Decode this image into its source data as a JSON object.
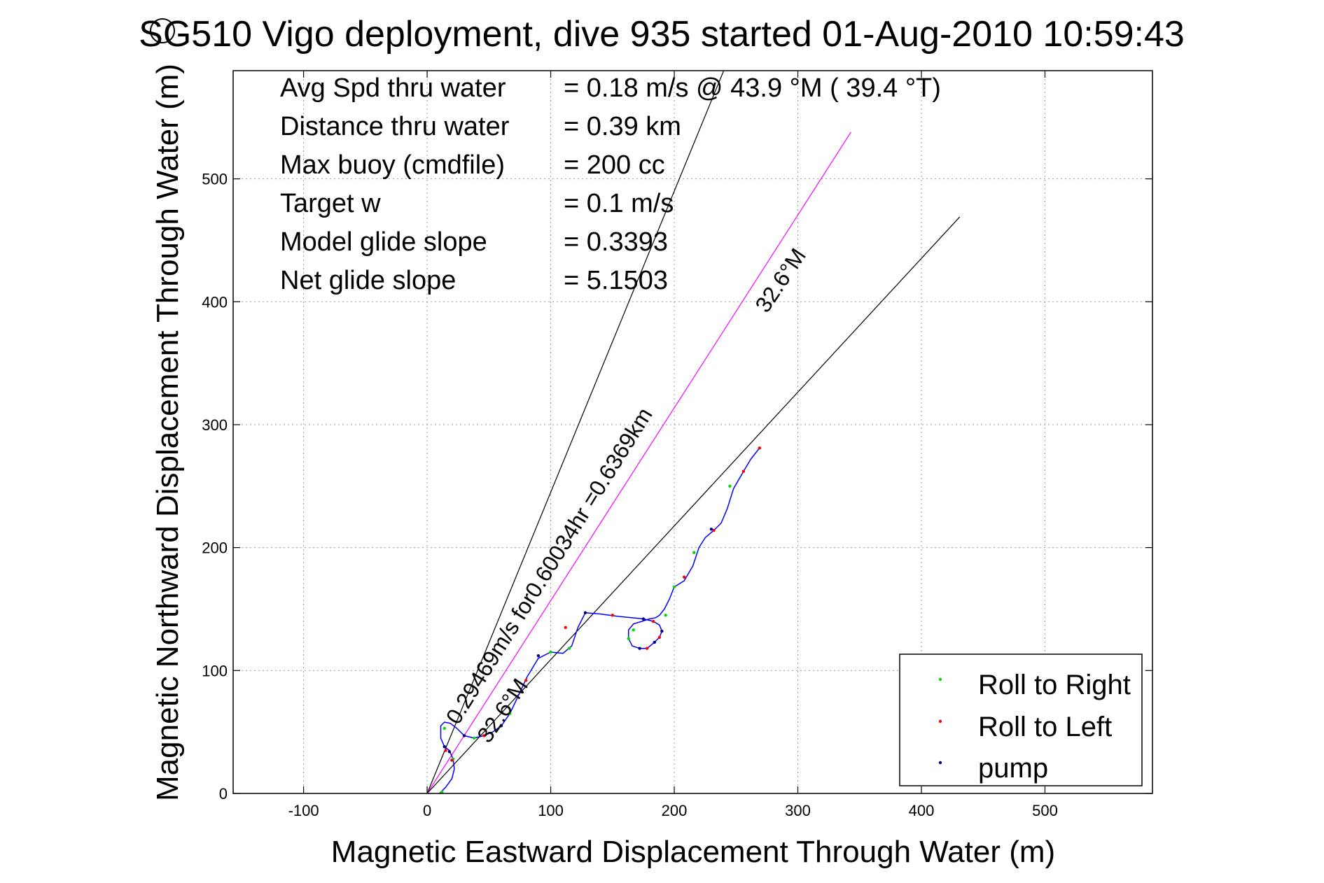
{
  "chart_data": {
    "type": "scatter",
    "title": "SG510 Vigo deployment, dive 935 started 01-Aug-2010 10:59:43",
    "xlabel": "Magnetic Eastward Displacement Through Water (m)",
    "ylabel": "Magnetic Northward Displacement Through Water (m)",
    "xlim": [
      -157,
      587
    ],
    "ylim": [
      0,
      588
    ],
    "xticks": [
      -100,
      0,
      100,
      200,
      300,
      400,
      500
    ],
    "yticks": [
      0,
      100,
      200,
      300,
      400,
      500
    ],
    "grid": true,
    "legend_position": "bottom-right",
    "info_lines": [
      {
        "label": "Avg Spd thru water",
        "value": "=  0.18 m/s @  43.9 °M ( 39.4 °T)"
      },
      {
        "label": "Distance thru water",
        "value": "=  0.39 km"
      },
      {
        "label": "Max buoy (cmdfile)",
        "value": "= 200 cc"
      },
      {
        "label": "Target w",
        "value": "= 0.1 m/s"
      },
      {
        "label": "Model glide slope",
        "value": "= 0.3393"
      },
      {
        "label": "Net glide slope",
        "value": "= 5.1503"
      }
    ],
    "annotations": [
      {
        "text": "0.29469m/s for0.60034hr =0.6369km",
        "x": 25,
        "y": 55,
        "angle_deg": 58
      },
      {
        "text": "32.6°M",
        "x": 275,
        "y": 390,
        "angle_deg": 56
      },
      {
        "text": "32.6°M",
        "x": 50,
        "y": 40,
        "angle_deg": 56
      }
    ],
    "reference_lines": [
      {
        "name": "",
        "color": "#000000",
        "x": [
          0,
          240
        ],
        "y": [
          0,
          588
        ]
      },
      {
        "name": "",
        "color": "#ff00ff",
        "x": [
          0,
          343
        ],
        "y": [
          0,
          538
        ]
      },
      {
        "name": "",
        "color": "#000000",
        "x": [
          0,
          431
        ],
        "y": [
          0,
          469
        ]
      }
    ],
    "track": {
      "name": "",
      "color": "#0000ff",
      "x": [
        10,
        15,
        20,
        22,
        21,
        18,
        14,
        11,
        11,
        14,
        19,
        24,
        30,
        38,
        46,
        53,
        60,
        67,
        74,
        81,
        90,
        100,
        110,
        117,
        122,
        128,
        140,
        155,
        175,
        183,
        188,
        190,
        188,
        184,
        178,
        172,
        166,
        163,
        163,
        167,
        174,
        180,
        185,
        188,
        192,
        196,
        200,
        208,
        215,
        220,
        225,
        232,
        238,
        243,
        248,
        252,
        256,
        262,
        269
      ],
      "y": [
        0,
        5,
        12,
        20,
        28,
        35,
        38,
        45,
        55,
        58,
        57,
        53,
        47,
        45,
        47,
        50,
        55,
        65,
        80,
        95,
        110,
        115,
        114,
        120,
        135,
        147,
        146,
        144,
        142,
        140,
        137,
        132,
        127,
        123,
        118,
        118,
        120,
        126,
        133,
        138,
        140,
        142,
        143,
        145,
        150,
        158,
        168,
        173,
        185,
        200,
        208,
        214,
        220,
        232,
        248,
        255,
        262,
        272,
        281
      ]
    },
    "series": [
      {
        "name": "Roll to Right",
        "color": "#00dd00",
        "x": [
          12,
          21,
          14,
          38,
          67,
          100,
          115,
          163,
          167,
          193,
          200,
          216,
          245
        ],
        "y": [
          1,
          28,
          53,
          45,
          65,
          115,
          118,
          126,
          133,
          145,
          168,
          196,
          250
        ]
      },
      {
        "name": "Roll to Left",
        "color": "#ff0000",
        "x": [
          20,
          15,
          46,
          80,
          112,
          150,
          183,
          188,
          178,
          208,
          232,
          256,
          269
        ],
        "y": [
          27,
          35,
          47,
          92,
          135,
          145,
          140,
          127,
          118,
          176,
          214,
          262,
          281
        ]
      },
      {
        "name": "pump",
        "color": "#000080",
        "x": [
          18,
          14,
          30,
          60,
          90,
          128,
          175,
          190,
          184,
          172,
          230
        ],
        "y": [
          34,
          38,
          47,
          55,
          112,
          147,
          142,
          132,
          123,
          118,
          215
        ]
      }
    ]
  }
}
